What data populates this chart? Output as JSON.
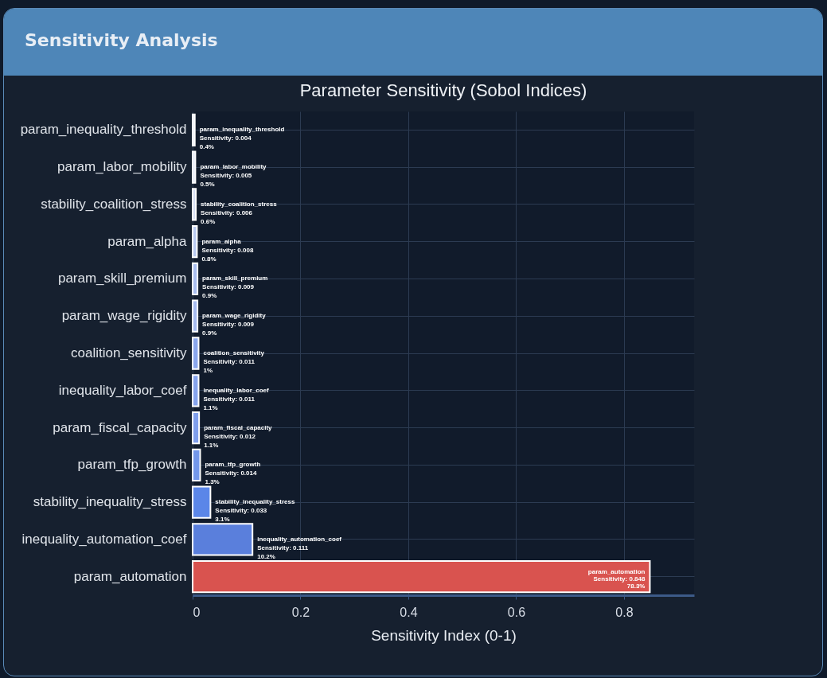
{
  "chart_data": {
    "type": "bar",
    "orientation": "horizontal",
    "title": "Sensitivity Analysis",
    "subtitle": "Parameter Sensitivity (Sobol Indices)",
    "xlabel": "Sensitivity Index (0-1)",
    "categories": [
      "param_inequality_threshold",
      "param_labor_mobility",
      "stability_coalition_stress",
      "param_alpha",
      "param_skill_premium",
      "param_wage_rigidity",
      "coalition_sensitivity",
      "inequality_labor_coef",
      "param_fiscal_capacity",
      "param_tfp_growth",
      "stability_inequality_stress",
      "inequality_automation_coef",
      "param_automation"
    ],
    "values": [
      0.004,
      0.005,
      0.006,
      0.008,
      0.009,
      0.009,
      0.011,
      0.011,
      0.012,
      0.014,
      0.033,
      0.111,
      0.848
    ],
    "colors": [
      "#e3e9f7",
      "#dfe6f6",
      "#d5def4",
      "#b9c9f0",
      "#a9bdee",
      "#a5baee",
      "#8aa6ec",
      "#86a3ec",
      "#7f9eeb",
      "#7397ea",
      "#5b86e8",
      "#5a7fdc",
      "#d9534f"
    ],
    "value_labels": [
      "param_inequality_threshold\nSensitivity: 0.004\n0.4%",
      "param_labor_mobility\nSensitivity: 0.005\n0.5%",
      "stability_coalition_stress\nSensitivity: 0.006\n0.6%",
      "param_alpha\nSensitivity: 0.008\n0.8%",
      "param_skill_premium\nSensitivity: 0.009\n0.9%",
      "param_wage_rigidity\nSensitivity: 0.009\n0.9%",
      "coalition_sensitivity\nSensitivity: 0.011\n1%",
      "inequality_labor_coef\nSensitivity: 0.011\n1.1%",
      "param_fiscal_capacity\nSensitivity: 0.012\n1.1%",
      "param_tfp_growth\nSensitivity: 0.014\n1.3%",
      "stability_inequality_stress\nSensitivity: 0.033\n3.1%",
      "inequality_automation_coef\nSensitivity: 0.111\n10.2%",
      "param_automation\nSensitivity: 0.848\n78.3%"
    ],
    "xlim": [
      0,
      0.93
    ],
    "xticks": [
      0,
      0.2,
      0.4,
      0.6,
      0.8
    ],
    "grid": true
  }
}
